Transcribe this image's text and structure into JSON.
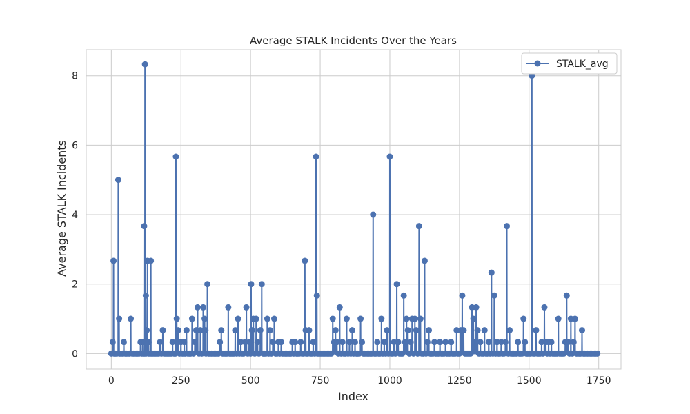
{
  "chart_data": {
    "type": "line",
    "title": "Average STALK Incidents Over the Years",
    "xlabel": "Index",
    "ylabel": "Average STALK Incidents",
    "xlim": [
      -90,
      1830
    ],
    "ylim": [
      -0.45,
      8.75
    ],
    "xticks": [
      0,
      250,
      500,
      750,
      1000,
      1250,
      1500,
      1750
    ],
    "xtick_labels": [
      "0",
      "250",
      "500",
      "750",
      "1000",
      "1250",
      "1500",
      "1750"
    ],
    "yticks": [
      0,
      2,
      4,
      6,
      8
    ],
    "ytick_labels": [
      "0",
      "2",
      "4",
      "6",
      "8"
    ],
    "grid": true,
    "legend_position": "top-right",
    "color": "#4c72b0",
    "series": [
      {
        "name": "STALK_avg",
        "x_start": 0,
        "x_end": 1745,
        "baseline": 0,
        "x_step": 5,
        "nonzero_points": [
          {
            "x": 5,
            "y": 0.33
          },
          {
            "x": 8,
            "y": 2.67
          },
          {
            "x": 25,
            "y": 5.0
          },
          {
            "x": 28,
            "y": 1.0
          },
          {
            "x": 45,
            "y": 0.33
          },
          {
            "x": 70,
            "y": 1.0
          },
          {
            "x": 105,
            "y": 0.33
          },
          {
            "x": 112,
            "y": 0.33
          },
          {
            "x": 118,
            "y": 3.67
          },
          {
            "x": 121,
            "y": 8.33
          },
          {
            "x": 124,
            "y": 1.67
          },
          {
            "x": 127,
            "y": 0.67
          },
          {
            "x": 130,
            "y": 2.67
          },
          {
            "x": 134,
            "y": 0.33
          },
          {
            "x": 142,
            "y": 2.67
          },
          {
            "x": 175,
            "y": 0.33
          },
          {
            "x": 185,
            "y": 0.67
          },
          {
            "x": 220,
            "y": 0.33
          },
          {
            "x": 232,
            "y": 5.67
          },
          {
            "x": 235,
            "y": 1.0
          },
          {
            "x": 240,
            "y": 0.67
          },
          {
            "x": 250,
            "y": 0.33
          },
          {
            "x": 262,
            "y": 0.33
          },
          {
            "x": 270,
            "y": 0.67
          },
          {
            "x": 290,
            "y": 1.0
          },
          {
            "x": 300,
            "y": 0.33
          },
          {
            "x": 305,
            "y": 0.67
          },
          {
            "x": 310,
            "y": 1.33
          },
          {
            "x": 320,
            "y": 0.67
          },
          {
            "x": 330,
            "y": 1.33
          },
          {
            "x": 335,
            "y": 1.0
          },
          {
            "x": 338,
            "y": 0.67
          },
          {
            "x": 345,
            "y": 2.0
          },
          {
            "x": 390,
            "y": 0.33
          },
          {
            "x": 395,
            "y": 0.67
          },
          {
            "x": 420,
            "y": 1.33
          },
          {
            "x": 445,
            "y": 0.67
          },
          {
            "x": 455,
            "y": 1.0
          },
          {
            "x": 465,
            "y": 0.33
          },
          {
            "x": 480,
            "y": 0.33
          },
          {
            "x": 485,
            "y": 1.33
          },
          {
            "x": 495,
            "y": 0.33
          },
          {
            "x": 502,
            "y": 2.0
          },
          {
            "x": 505,
            "y": 0.67
          },
          {
            "x": 510,
            "y": 1.0
          },
          {
            "x": 520,
            "y": 1.0
          },
          {
            "x": 525,
            "y": 0.33
          },
          {
            "x": 535,
            "y": 0.67
          },
          {
            "x": 540,
            "y": 2.0
          },
          {
            "x": 560,
            "y": 1.0
          },
          {
            "x": 570,
            "y": 0.67
          },
          {
            "x": 580,
            "y": 0.33
          },
          {
            "x": 585,
            "y": 1.0
          },
          {
            "x": 600,
            "y": 0.33
          },
          {
            "x": 610,
            "y": 0.33
          },
          {
            "x": 650,
            "y": 0.33
          },
          {
            "x": 660,
            "y": 0.33
          },
          {
            "x": 680,
            "y": 0.33
          },
          {
            "x": 695,
            "y": 2.67
          },
          {
            "x": 698,
            "y": 0.67
          },
          {
            "x": 710,
            "y": 0.67
          },
          {
            "x": 725,
            "y": 0.33
          },
          {
            "x": 735,
            "y": 5.67
          },
          {
            "x": 738,
            "y": 1.67
          },
          {
            "x": 795,
            "y": 1.0
          },
          {
            "x": 800,
            "y": 0.33
          },
          {
            "x": 805,
            "y": 0.67
          },
          {
            "x": 810,
            "y": 0.33
          },
          {
            "x": 820,
            "y": 1.33
          },
          {
            "x": 830,
            "y": 0.33
          },
          {
            "x": 845,
            "y": 1.0
          },
          {
            "x": 855,
            "y": 0.33
          },
          {
            "x": 865,
            "y": 0.67
          },
          {
            "x": 875,
            "y": 0.33
          },
          {
            "x": 895,
            "y": 1.0
          },
          {
            "x": 900,
            "y": 0.33
          },
          {
            "x": 940,
            "y": 4.0
          },
          {
            "x": 955,
            "y": 0.33
          },
          {
            "x": 970,
            "y": 1.0
          },
          {
            "x": 980,
            "y": 0.33
          },
          {
            "x": 990,
            "y": 0.67
          },
          {
            "x": 1000,
            "y": 5.67
          },
          {
            "x": 1015,
            "y": 0.33
          },
          {
            "x": 1025,
            "y": 2.0
          },
          {
            "x": 1030,
            "y": 0.33
          },
          {
            "x": 1050,
            "y": 1.67
          },
          {
            "x": 1055,
            "y": 0.33
          },
          {
            "x": 1060,
            "y": 1.0
          },
          {
            "x": 1065,
            "y": 0.67
          },
          {
            "x": 1075,
            "y": 0.33
          },
          {
            "x": 1080,
            "y": 1.0
          },
          {
            "x": 1090,
            "y": 1.0
          },
          {
            "x": 1095,
            "y": 0.67
          },
          {
            "x": 1105,
            "y": 3.67
          },
          {
            "x": 1110,
            "y": 1.0
          },
          {
            "x": 1125,
            "y": 2.67
          },
          {
            "x": 1135,
            "y": 0.33
          },
          {
            "x": 1140,
            "y": 0.67
          },
          {
            "x": 1160,
            "y": 0.33
          },
          {
            "x": 1180,
            "y": 0.33
          },
          {
            "x": 1200,
            "y": 0.33
          },
          {
            "x": 1220,
            "y": 0.33
          },
          {
            "x": 1240,
            "y": 0.67
          },
          {
            "x": 1255,
            "y": 0.67
          },
          {
            "x": 1260,
            "y": 1.67
          },
          {
            "x": 1265,
            "y": 0.67
          },
          {
            "x": 1295,
            "y": 1.33
          },
          {
            "x": 1300,
            "y": 1.0
          },
          {
            "x": 1305,
            "y": 0.33
          },
          {
            "x": 1310,
            "y": 1.33
          },
          {
            "x": 1315,
            "y": 0.67
          },
          {
            "x": 1325,
            "y": 0.33
          },
          {
            "x": 1340,
            "y": 0.67
          },
          {
            "x": 1355,
            "y": 0.33
          },
          {
            "x": 1365,
            "y": 2.33
          },
          {
            "x": 1375,
            "y": 1.67
          },
          {
            "x": 1385,
            "y": 0.33
          },
          {
            "x": 1400,
            "y": 0.33
          },
          {
            "x": 1415,
            "y": 0.33
          },
          {
            "x": 1420,
            "y": 3.67
          },
          {
            "x": 1430,
            "y": 0.67
          },
          {
            "x": 1460,
            "y": 0.33
          },
          {
            "x": 1480,
            "y": 1.0
          },
          {
            "x": 1485,
            "y": 0.33
          },
          {
            "x": 1510,
            "y": 8.0
          },
          {
            "x": 1525,
            "y": 0.67
          },
          {
            "x": 1545,
            "y": 0.33
          },
          {
            "x": 1555,
            "y": 1.33
          },
          {
            "x": 1560,
            "y": 0.33
          },
          {
            "x": 1570,
            "y": 0.33
          },
          {
            "x": 1580,
            "y": 0.33
          },
          {
            "x": 1605,
            "y": 1.0
          },
          {
            "x": 1630,
            "y": 0.33
          },
          {
            "x": 1635,
            "y": 1.67
          },
          {
            "x": 1640,
            "y": 0.33
          },
          {
            "x": 1650,
            "y": 1.0
          },
          {
            "x": 1660,
            "y": 0.33
          },
          {
            "x": 1665,
            "y": 1.0
          },
          {
            "x": 1690,
            "y": 0.67
          }
        ]
      }
    ]
  }
}
